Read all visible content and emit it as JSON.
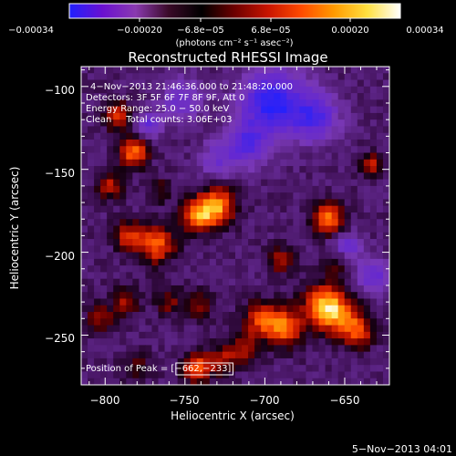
{
  "colorbar": {
    "colors": [
      "#2020ff",
      "#6a10d0",
      "#8a3ab0",
      "#3a0a28",
      "#000000",
      "#6e0000",
      "#c81400",
      "#ff4a00",
      "#ff9a00",
      "#ffe040",
      "#ffffff"
    ],
    "tick_labels": [
      "−0.00034",
      "−0.00020",
      "−6.8e−05",
      "6.8e−05",
      "0.00020",
      "0.00034"
    ],
    "unit_label": "(photons cm⁻² s⁻¹ asec⁻²)"
  },
  "chart_data": {
    "type": "heatmap",
    "title": "Reconstructed RHESSI Image",
    "xlabel": "Heliocentric X (arcsec)",
    "ylabel": "Heliocentric Y (arcsec)",
    "xlim": [
      -815,
      -622
    ],
    "ylim": [
      -280,
      -88
    ],
    "x_ticks": [
      -800,
      -750,
      -700,
      -650
    ],
    "x_tick_labels": [
      "−800",
      "−750",
      "−700",
      "−650"
    ],
    "y_ticks": [
      -100,
      -150,
      -200,
      -250
    ],
    "y_tick_labels": [
      "−100",
      "−150",
      "−200",
      "−250"
    ],
    "info_lines": [
      "4−Nov−2013 21:46:36.000 to 21:48:20.000",
      "Detectors: 3F 5F 6F 7F 8F 9F, Att 0",
      "Energy Range: 25.0 − 50.0 keV",
      "Clean     Total counts: 3.06E+03"
    ],
    "peak_label": "Position of Peak = [−662,−233]",
    "peak": [
      -662,
      -233
    ],
    "sources": [
      {
        "x": -662,
        "y": -233,
        "strength": 1.0,
        "w": 9
      },
      {
        "x": -648,
        "y": -243,
        "strength": 0.55,
        "w": 8
      },
      {
        "x": -730,
        "y": -172,
        "strength": 0.8,
        "w": 8
      },
      {
        "x": -742,
        "y": -178,
        "strength": 0.7,
        "w": 7
      },
      {
        "x": -782,
        "y": -140,
        "strength": 0.75,
        "w": 6
      },
      {
        "x": -792,
        "y": -118,
        "strength": 0.55,
        "w": 6
      },
      {
        "x": -797,
        "y": -160,
        "strength": 0.45,
        "w": 6
      },
      {
        "x": -768,
        "y": -195,
        "strength": 0.7,
        "w": 8
      },
      {
        "x": -786,
        "y": -190,
        "strength": 0.55,
        "w": 6
      },
      {
        "x": -688,
        "y": -245,
        "strength": 0.75,
        "w": 8
      },
      {
        "x": -703,
        "y": -240,
        "strength": 0.6,
        "w": 7
      },
      {
        "x": -713,
        "y": -258,
        "strength": 0.45,
        "w": 7
      },
      {
        "x": -743,
        "y": -270,
        "strength": 0.7,
        "w": 6
      },
      {
        "x": -728,
        "y": -265,
        "strength": 0.45,
        "w": 6
      },
      {
        "x": -660,
        "y": -180,
        "strength": 0.75,
        "w": 7
      },
      {
        "x": -655,
        "y": -205,
        "strength": 0.45,
        "w": 6
      },
      {
        "x": -640,
        "y": -250,
        "strength": 0.35,
        "w": 6
      },
      {
        "x": -787,
        "y": -230,
        "strength": 0.4,
        "w": 6
      },
      {
        "x": -760,
        "y": -230,
        "strength": 0.35,
        "w": 6
      },
      {
        "x": -690,
        "y": -205,
        "strength": 0.4,
        "w": 6
      },
      {
        "x": -633,
        "y": -148,
        "strength": 0.5,
        "w": 5
      },
      {
        "x": -803,
        "y": -240,
        "strength": 0.4,
        "w": 6
      },
      {
        "x": -741,
        "y": -232,
        "strength": 0.35,
        "w": 6
      },
      {
        "x": -765,
        "y": -163,
        "strength": 0.3,
        "w": 5
      },
      {
        "x": -780,
        "y": -270,
        "strength": 0.3,
        "w": 6
      }
    ],
    "negative_regions": [
      {
        "x": -695,
        "y": -110,
        "strength": 0.85,
        "w": 14
      },
      {
        "x": -668,
        "y": -118,
        "strength": 0.6,
        "w": 10
      },
      {
        "x": -712,
        "y": -135,
        "strength": 0.55,
        "w": 9
      },
      {
        "x": -752,
        "y": -108,
        "strength": 0.45,
        "w": 9
      },
      {
        "x": -650,
        "y": -198,
        "strength": 0.55,
        "w": 7
      },
      {
        "x": -632,
        "y": -215,
        "strength": 0.5,
        "w": 7
      },
      {
        "x": -772,
        "y": -123,
        "strength": 0.5,
        "w": 5
      },
      {
        "x": -730,
        "y": -145,
        "strength": 0.35,
        "w": 8
      }
    ]
  },
  "footer": {
    "timestamp": "5−Nov−2013 04:01"
  }
}
